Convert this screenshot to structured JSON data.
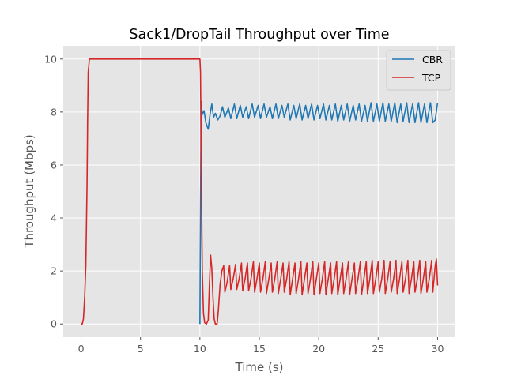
{
  "chart_data": {
    "type": "line",
    "title": "Sack1/DropTail Throughput over Time",
    "xlabel": "Time (s)",
    "ylabel": "Throughput (Mbps)",
    "xlim": [
      -1.5,
      31.5
    ],
    "ylim": [
      -0.5,
      10.5
    ],
    "xticks": [
      0,
      5,
      10,
      15,
      20,
      25,
      30
    ],
    "yticks": [
      0,
      2,
      4,
      6,
      8,
      10
    ],
    "grid": true,
    "legend_position": "top-right",
    "series": [
      {
        "name": "CBR",
        "color": "#1f77b4",
        "points": [
          [
            10.0,
            0
          ],
          [
            10.1,
            8.4
          ],
          [
            10.2,
            7.9
          ],
          [
            10.35,
            8.05
          ],
          [
            10.5,
            7.6
          ],
          [
            10.7,
            7.35
          ],
          [
            10.85,
            7.9
          ],
          [
            11.0,
            8.3
          ],
          [
            11.15,
            7.8
          ],
          [
            11.3,
            7.95
          ],
          [
            11.5,
            7.7
          ],
          [
            11.7,
            7.85
          ],
          [
            11.9,
            8.2
          ],
          [
            12.1,
            7.8
          ],
          [
            12.4,
            8.15
          ],
          [
            12.6,
            7.75
          ],
          [
            12.9,
            8.3
          ],
          [
            13.1,
            7.75
          ],
          [
            13.4,
            8.25
          ],
          [
            13.6,
            7.8
          ],
          [
            13.9,
            8.2
          ],
          [
            14.1,
            7.75
          ],
          [
            14.4,
            8.3
          ],
          [
            14.6,
            7.8
          ],
          [
            14.9,
            8.25
          ],
          [
            15.1,
            7.75
          ],
          [
            15.4,
            8.3
          ],
          [
            15.6,
            7.8
          ],
          [
            15.9,
            8.2
          ],
          [
            16.1,
            7.75
          ],
          [
            16.4,
            8.3
          ],
          [
            16.6,
            7.75
          ],
          [
            16.9,
            8.25
          ],
          [
            17.1,
            7.8
          ],
          [
            17.4,
            8.3
          ],
          [
            17.6,
            7.7
          ],
          [
            17.9,
            8.25
          ],
          [
            18.1,
            7.75
          ],
          [
            18.4,
            8.3
          ],
          [
            18.6,
            7.7
          ],
          [
            18.9,
            8.25
          ],
          [
            19.1,
            7.75
          ],
          [
            19.4,
            8.3
          ],
          [
            19.6,
            7.7
          ],
          [
            19.9,
            8.25
          ],
          [
            20.1,
            7.75
          ],
          [
            20.4,
            8.3
          ],
          [
            20.6,
            7.7
          ],
          [
            20.9,
            8.25
          ],
          [
            21.1,
            7.7
          ],
          [
            21.4,
            8.3
          ],
          [
            21.6,
            7.65
          ],
          [
            21.9,
            8.25
          ],
          [
            22.1,
            7.7
          ],
          [
            22.4,
            8.3
          ],
          [
            22.6,
            7.65
          ],
          [
            22.9,
            8.25
          ],
          [
            23.1,
            7.7
          ],
          [
            23.4,
            8.3
          ],
          [
            23.6,
            7.65
          ],
          [
            23.9,
            8.25
          ],
          [
            24.1,
            7.65
          ],
          [
            24.4,
            8.35
          ],
          [
            24.6,
            7.65
          ],
          [
            24.9,
            8.3
          ],
          [
            25.1,
            7.65
          ],
          [
            25.4,
            8.35
          ],
          [
            25.6,
            7.65
          ],
          [
            25.9,
            8.3
          ],
          [
            26.1,
            7.65
          ],
          [
            26.4,
            8.35
          ],
          [
            26.6,
            7.6
          ],
          [
            26.9,
            8.3
          ],
          [
            27.1,
            7.65
          ],
          [
            27.4,
            8.35
          ],
          [
            27.6,
            7.6
          ],
          [
            27.9,
            8.3
          ],
          [
            28.1,
            7.6
          ],
          [
            28.4,
            8.35
          ],
          [
            28.6,
            7.6
          ],
          [
            28.9,
            8.3
          ],
          [
            29.1,
            7.6
          ],
          [
            29.4,
            8.35
          ],
          [
            29.6,
            7.6
          ],
          [
            29.8,
            7.7
          ],
          [
            30.0,
            8.35
          ]
        ]
      },
      {
        "name": "TCP",
        "color": "#d62728",
        "points": [
          [
            0.0,
            0
          ],
          [
            0.1,
            0
          ],
          [
            0.2,
            0.2
          ],
          [
            0.3,
            1.0
          ],
          [
            0.4,
            2.2
          ],
          [
            0.5,
            5.2
          ],
          [
            0.55,
            7.7
          ],
          [
            0.6,
            9.5
          ],
          [
            0.7,
            10.0
          ],
          [
            10.0,
            10.0
          ],
          [
            10.05,
            9.5
          ],
          [
            10.1,
            6.5
          ],
          [
            10.2,
            2.0
          ],
          [
            10.3,
            0.4
          ],
          [
            10.4,
            0.05
          ],
          [
            10.55,
            0.0
          ],
          [
            10.7,
            0.15
          ],
          [
            10.8,
            1.5
          ],
          [
            10.9,
            2.6
          ],
          [
            11.0,
            2.1
          ],
          [
            11.1,
            1.0
          ],
          [
            11.2,
            0.2
          ],
          [
            11.3,
            0.0
          ],
          [
            11.45,
            0.0
          ],
          [
            11.55,
            0.5
          ],
          [
            11.7,
            1.5
          ],
          [
            11.85,
            2.0
          ],
          [
            12.0,
            2.2
          ],
          [
            12.1,
            1.2
          ],
          [
            12.3,
            1.6
          ],
          [
            12.5,
            2.2
          ],
          [
            12.6,
            1.3
          ],
          [
            12.8,
            1.7
          ],
          [
            13.0,
            2.25
          ],
          [
            13.1,
            1.3
          ],
          [
            13.3,
            1.7
          ],
          [
            13.5,
            2.3
          ],
          [
            13.6,
            1.25
          ],
          [
            13.8,
            1.7
          ],
          [
            14.0,
            2.3
          ],
          [
            14.1,
            1.25
          ],
          [
            14.3,
            1.7
          ],
          [
            14.5,
            2.35
          ],
          [
            14.6,
            1.2
          ],
          [
            14.8,
            1.7
          ],
          [
            15.0,
            2.3
          ],
          [
            15.1,
            1.2
          ],
          [
            15.3,
            1.7
          ],
          [
            15.5,
            2.35
          ],
          [
            15.6,
            1.15
          ],
          [
            15.8,
            1.7
          ],
          [
            16.0,
            2.3
          ],
          [
            16.1,
            1.2
          ],
          [
            16.3,
            1.7
          ],
          [
            16.5,
            2.35
          ],
          [
            16.6,
            1.15
          ],
          [
            16.8,
            1.7
          ],
          [
            17.0,
            2.3
          ],
          [
            17.1,
            1.2
          ],
          [
            17.3,
            1.7
          ],
          [
            17.5,
            2.35
          ],
          [
            17.6,
            1.1
          ],
          [
            17.8,
            1.7
          ],
          [
            18.0,
            2.3
          ],
          [
            18.1,
            1.15
          ],
          [
            18.3,
            1.7
          ],
          [
            18.5,
            2.35
          ],
          [
            18.6,
            1.1
          ],
          [
            18.8,
            1.7
          ],
          [
            19.0,
            2.3
          ],
          [
            19.1,
            1.15
          ],
          [
            19.3,
            1.7
          ],
          [
            19.5,
            2.35
          ],
          [
            19.6,
            1.1
          ],
          [
            19.8,
            1.7
          ],
          [
            20.0,
            2.3
          ],
          [
            20.1,
            1.15
          ],
          [
            20.3,
            1.7
          ],
          [
            20.5,
            2.35
          ],
          [
            20.6,
            1.1
          ],
          [
            20.8,
            1.7
          ],
          [
            21.0,
            2.3
          ],
          [
            21.1,
            1.15
          ],
          [
            21.3,
            1.7
          ],
          [
            21.5,
            2.35
          ],
          [
            21.6,
            1.1
          ],
          [
            21.8,
            1.7
          ],
          [
            22.0,
            2.3
          ],
          [
            22.1,
            1.15
          ],
          [
            22.3,
            1.7
          ],
          [
            22.5,
            2.35
          ],
          [
            22.6,
            1.1
          ],
          [
            22.8,
            1.7
          ],
          [
            23.0,
            2.3
          ],
          [
            23.1,
            1.15
          ],
          [
            23.3,
            1.7
          ],
          [
            23.5,
            2.35
          ],
          [
            23.6,
            1.1
          ],
          [
            23.8,
            1.7
          ],
          [
            24.0,
            2.35
          ],
          [
            24.1,
            1.15
          ],
          [
            24.3,
            1.7
          ],
          [
            24.5,
            2.4
          ],
          [
            24.6,
            1.15
          ],
          [
            24.8,
            1.7
          ],
          [
            25.0,
            2.35
          ],
          [
            25.1,
            1.2
          ],
          [
            25.3,
            1.7
          ],
          [
            25.5,
            2.4
          ],
          [
            25.6,
            1.15
          ],
          [
            25.8,
            1.7
          ],
          [
            26.0,
            2.35
          ],
          [
            26.1,
            1.2
          ],
          [
            26.3,
            1.7
          ],
          [
            26.5,
            2.4
          ],
          [
            26.6,
            1.15
          ],
          [
            26.8,
            1.7
          ],
          [
            27.0,
            2.35
          ],
          [
            27.1,
            1.2
          ],
          [
            27.3,
            1.7
          ],
          [
            27.5,
            2.4
          ],
          [
            27.6,
            1.15
          ],
          [
            27.8,
            1.7
          ],
          [
            28.0,
            2.35
          ],
          [
            28.1,
            1.2
          ],
          [
            28.3,
            1.7
          ],
          [
            28.5,
            2.4
          ],
          [
            28.6,
            1.15
          ],
          [
            28.8,
            1.7
          ],
          [
            29.0,
            2.35
          ],
          [
            29.1,
            1.2
          ],
          [
            29.3,
            1.7
          ],
          [
            29.5,
            2.4
          ],
          [
            29.6,
            1.2
          ],
          [
            29.8,
            2.2
          ],
          [
            29.9,
            2.45
          ],
          [
            30.0,
            1.45
          ]
        ]
      }
    ]
  }
}
